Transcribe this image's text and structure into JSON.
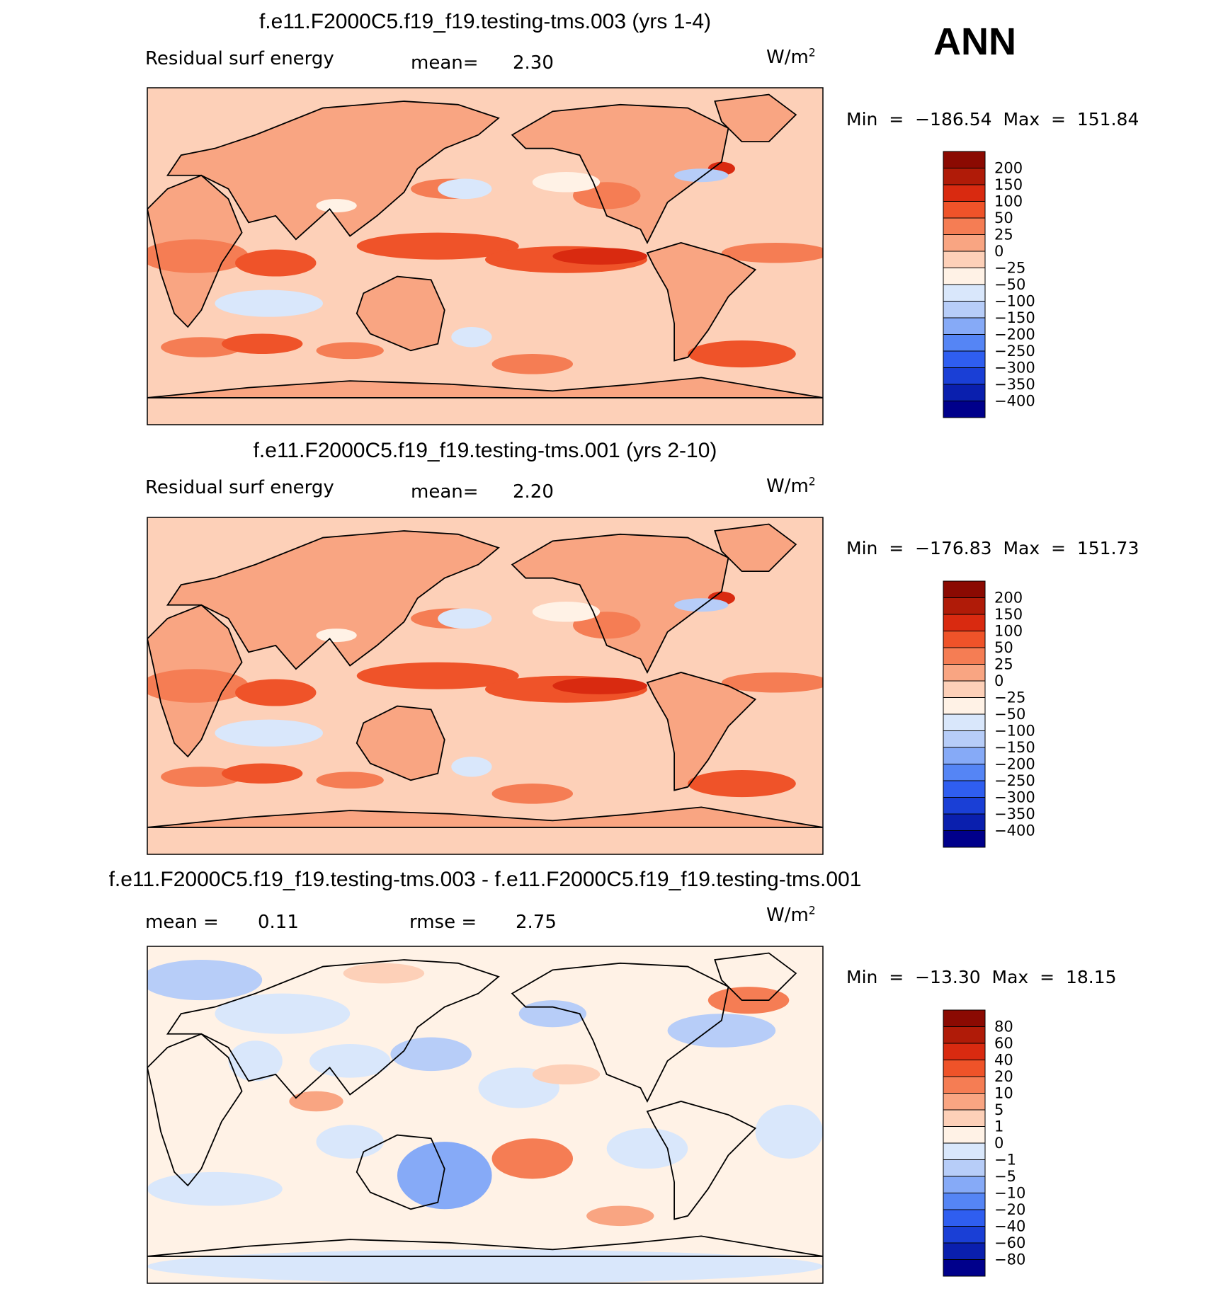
{
  "season": "ANN",
  "units_base": "W/m",
  "units_exp": "2",
  "colors": {
    "absolute": [
      "#00008b",
      "#0a1fae",
      "#1a3fd6",
      "#2f5ef0",
      "#5585f5",
      "#86aaf7",
      "#b7cdf8",
      "#d9e7fb",
      "#fff2e6",
      "#fdd0b8",
      "#f9a582",
      "#f57d54",
      "#ef5329",
      "#d92a10",
      "#b01b08",
      "#8b0a02"
    ],
    "difference": [
      "#00008b",
      "#0a1fae",
      "#1a3fd6",
      "#2f5ef0",
      "#5585f5",
      "#86aaf7",
      "#b7cdf8",
      "#d9e7fb",
      "#fff2e6",
      "#fdd0b8",
      "#f9a582",
      "#f57d54",
      "#ef5329",
      "#d92a10",
      "#b01b08",
      "#8b0a02"
    ]
  },
  "panels": [
    {
      "title": "f.e11.F2000C5.f19_f19.testing-tms.003 (yrs 1-4)",
      "left_label": "Residual surf energy",
      "mid_label": "mean=",
      "mid_value": "2.30",
      "min_text": "Min",
      "min_value": "−186.54",
      "max_text": "Max",
      "max_value": "151.84",
      "colorbar_labels": [
        "200",
        "150",
        "100",
        "50",
        "25",
        "0",
        "−25",
        "−50",
        "−100",
        "−150",
        "−200",
        "−250",
        "−300",
        "−350",
        "−400"
      ]
    },
    {
      "title": "f.e11.F2000C5.f19_f19.testing-tms.001 (yrs 2-10)",
      "left_label": "Residual surf energy",
      "mid_label": "mean=",
      "mid_value": "2.20",
      "min_text": "Min",
      "min_value": "−176.83",
      "max_text": "Max",
      "max_value": "151.73",
      "colorbar_labels": [
        "200",
        "150",
        "100",
        "50",
        "25",
        "0",
        "−25",
        "−50",
        "−100",
        "−150",
        "−200",
        "−250",
        "−300",
        "−350",
        "−400"
      ]
    },
    {
      "title": "f.e11.F2000C5.f19_f19.testing-tms.003 - f.e11.F2000C5.f19_f19.testing-tms.001",
      "left_label": "mean =",
      "left_value": "0.11",
      "mid_label": "rmse =",
      "mid_value": "2.75",
      "min_text": "Min",
      "min_value": "−13.30",
      "max_text": "Max",
      "max_value": "18.15",
      "colorbar_labels": [
        "80",
        "60",
        "40",
        "20",
        "10",
        "5",
        "1",
        "0",
        "−1",
        "−5",
        "−10",
        "−20",
        "−40",
        "−60",
        "−80"
      ]
    }
  ],
  "chart_data": [
    {
      "type": "heatmap",
      "title": "f.e11.F2000C5.f19_f19.testing-tms.003 (yrs 1-4)",
      "variable": "Residual surf energy",
      "units": "W/m2",
      "mean": 2.3,
      "min": -186.54,
      "max": 151.84,
      "contour_levels": [
        -400,
        -350,
        -300,
        -250,
        -200,
        -150,
        -100,
        -50,
        -25,
        0,
        25,
        50,
        100,
        150,
        200
      ],
      "dominant_range": [
        -50,
        100
      ]
    },
    {
      "type": "heatmap",
      "title": "f.e11.F2000C5.f19_f19.testing-tms.001 (yrs 2-10)",
      "variable": "Residual surf energy",
      "units": "W/m2",
      "mean": 2.2,
      "min": -176.83,
      "max": 151.73,
      "contour_levels": [
        -400,
        -350,
        -300,
        -250,
        -200,
        -150,
        -100,
        -50,
        -25,
        0,
        25,
        50,
        100,
        150,
        200
      ],
      "dominant_range": [
        -50,
        100
      ]
    },
    {
      "type": "heatmap",
      "title": "f.e11.F2000C5.f19_f19.testing-tms.003 - f.e11.F2000C5.f19_f19.testing-tms.001",
      "units": "W/m2",
      "mean": 0.11,
      "rmse": 2.75,
      "min": -13.3,
      "max": 18.15,
      "contour_levels": [
        -80,
        -60,
        -40,
        -20,
        -10,
        -5,
        -1,
        0,
        1,
        5,
        10,
        20,
        40,
        60,
        80
      ],
      "dominant_range": [
        -10,
        10
      ]
    }
  ]
}
